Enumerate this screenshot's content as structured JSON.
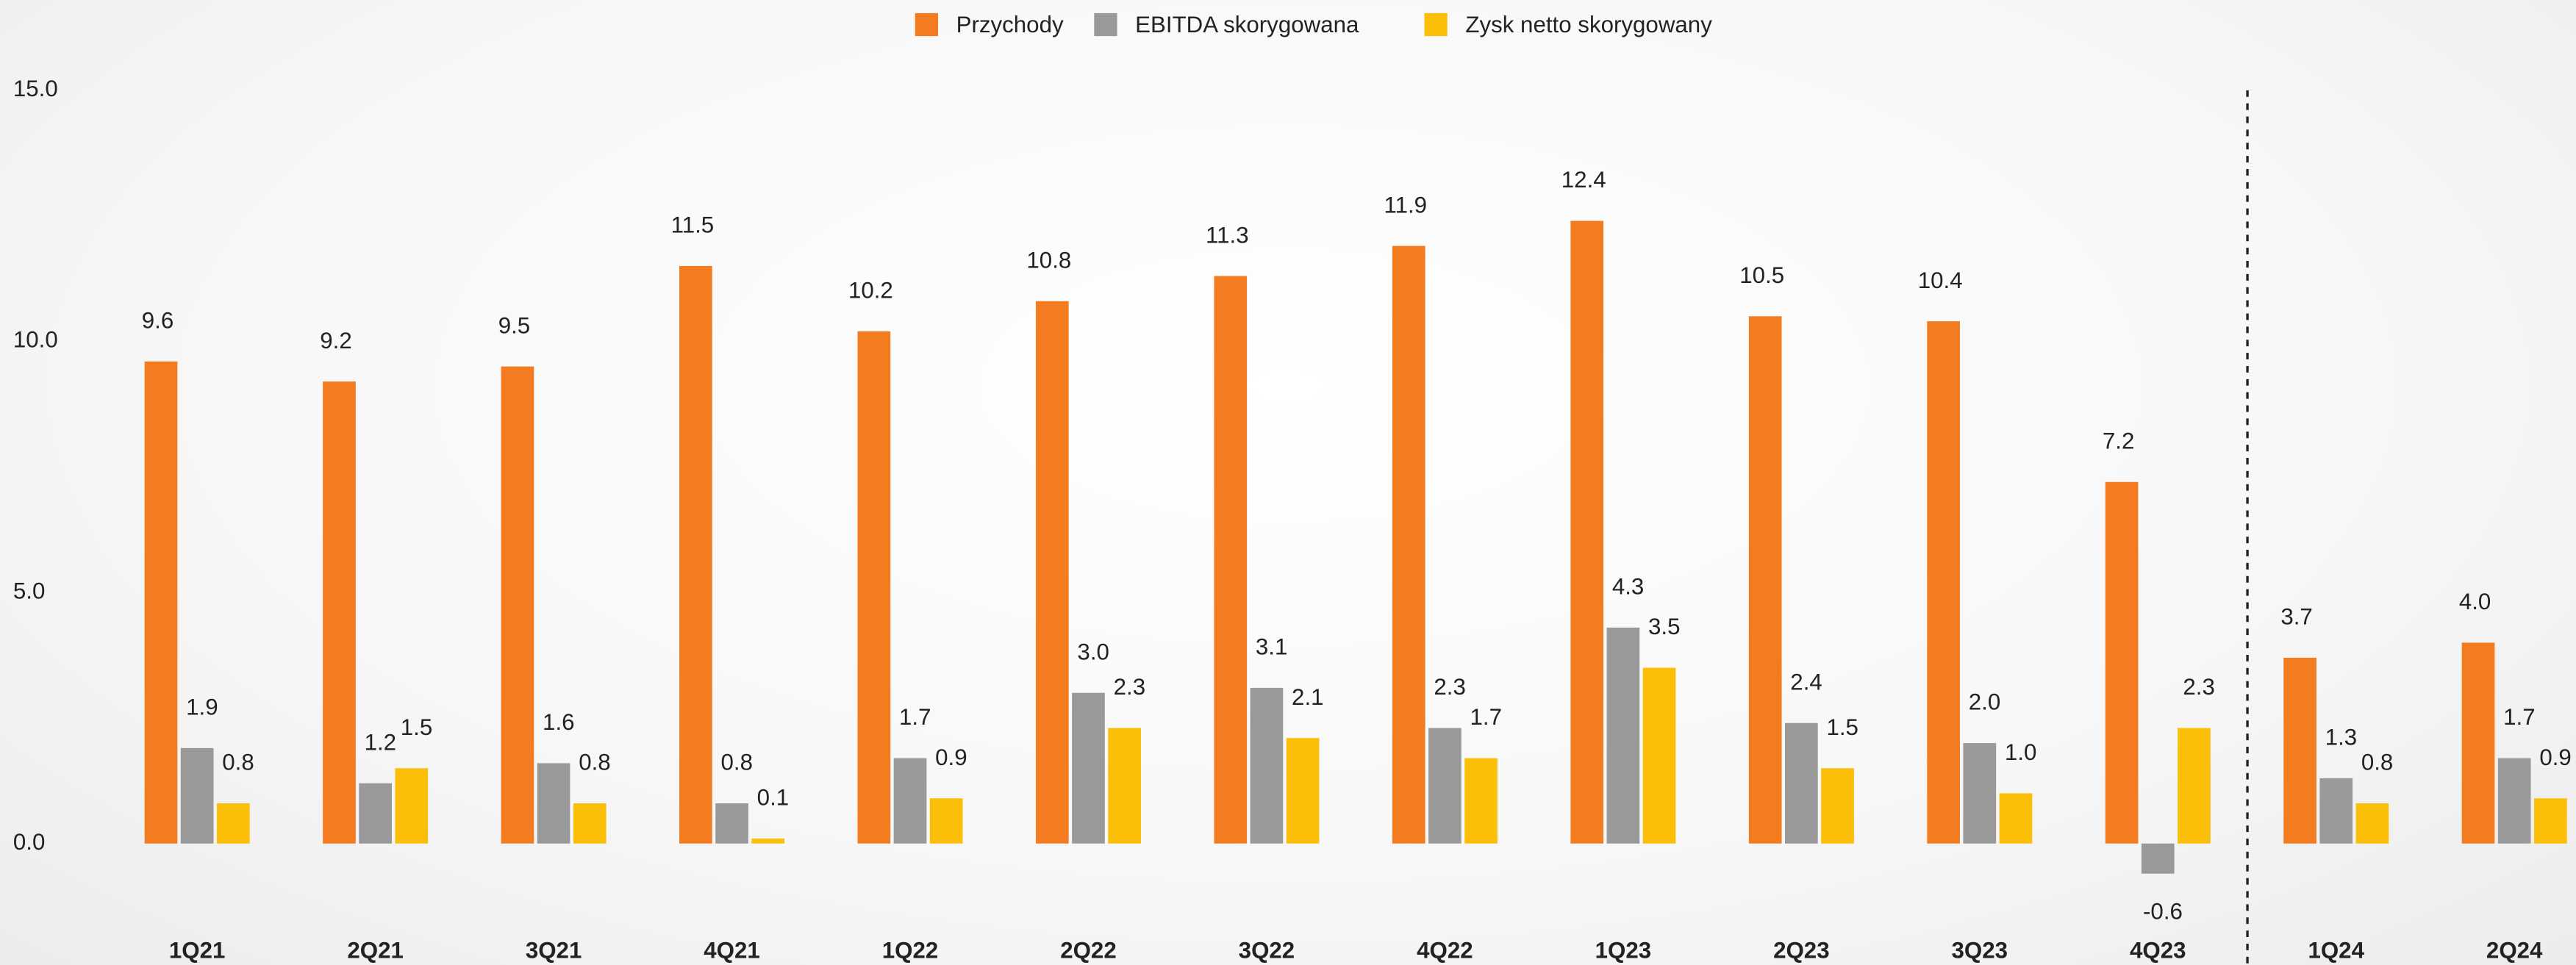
{
  "chart_data": {
    "type": "bar",
    "categories": [
      "1Q21",
      "2Q21",
      "3Q21",
      "4Q21",
      "1Q22",
      "2Q22",
      "3Q22",
      "4Q22",
      "1Q23",
      "2Q23",
      "3Q23",
      "4Q23",
      "1Q24",
      "2Q24"
    ],
    "series": [
      {
        "name": "Przychody",
        "color": "#f47c20",
        "values": [
          9.6,
          9.2,
          9.5,
          11.5,
          10.2,
          10.8,
          11.3,
          11.9,
          12.4,
          10.5,
          10.4,
          7.2,
          3.7,
          4.0
        ],
        "value_labels": [
          "9.6",
          "9.2",
          "9.5",
          "11.5",
          "10.2",
          "10.8",
          "11.3",
          "11.9",
          "12.4",
          "10.5",
          "10.4",
          "7.2",
          "3.7",
          "4.0"
        ]
      },
      {
        "name": "EBITDA skorygowana",
        "color": "#999999",
        "values": [
          1.9,
          1.2,
          1.6,
          0.8,
          1.7,
          3.0,
          3.1,
          2.3,
          4.3,
          2.4,
          2.0,
          -0.6,
          1.3,
          1.7
        ],
        "value_labels": [
          "1.9",
          "1.2",
          "1.6",
          "0.8",
          "1.7",
          "3.0",
          "3.1",
          "2.3",
          "4.3",
          "2.4",
          "2.0",
          "-0.6",
          "1.3",
          "1.7"
        ]
      },
      {
        "name": "Zysk netto skorygowany",
        "color": "#fbbf0a",
        "values": [
          0.8,
          1.5,
          0.8,
          0.1,
          0.9,
          2.3,
          2.1,
          1.7,
          3.5,
          1.5,
          1.0,
          2.3,
          0.8,
          0.9
        ],
        "value_labels": [
          "0.8",
          "1.5",
          "0.8",
          "0.1",
          "0.9",
          "2.3",
          "2.1",
          "1.7",
          "3.5",
          "1.5",
          "1.0",
          "2.3",
          "0.8",
          "0.9"
        ]
      }
    ],
    "ylim": [
      -2.2,
      15
    ],
    "yticks": [
      {
        "value": 0,
        "label": "0.0"
      },
      {
        "value": 5,
        "label": "5.0"
      },
      {
        "value": 10,
        "label": "10.0"
      },
      {
        "value": 15,
        "label": "15.0"
      }
    ],
    "grid": false,
    "legend": "top"
  }
}
